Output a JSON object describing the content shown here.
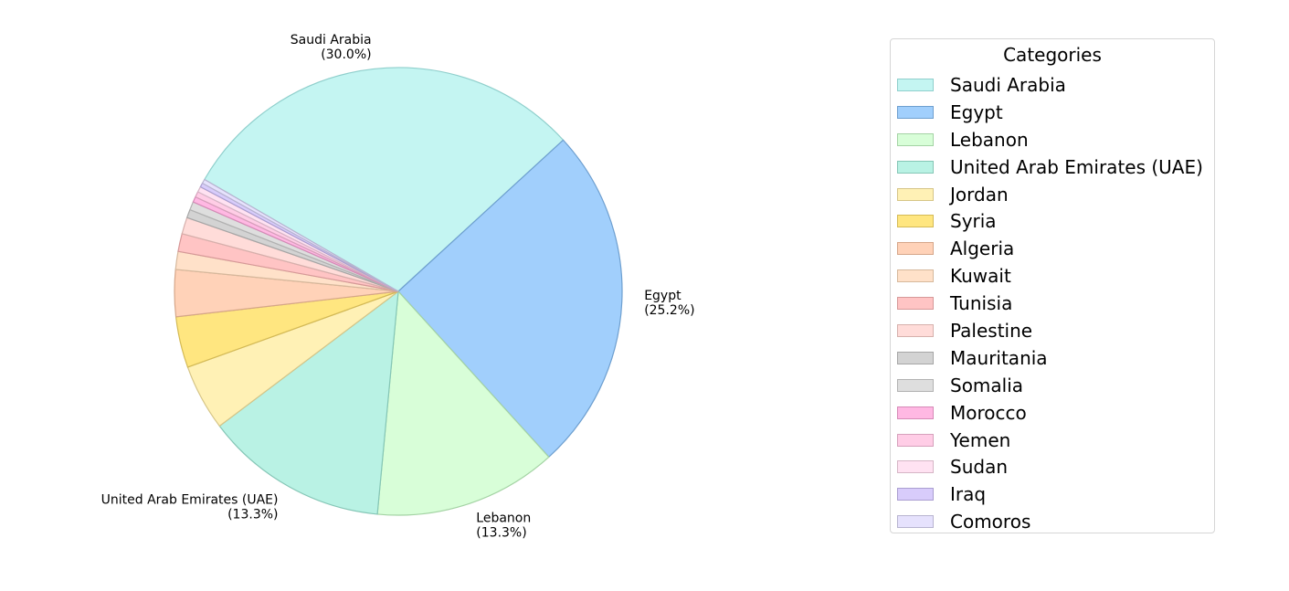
{
  "chart_data": {
    "type": "pie",
    "slices": [
      {
        "label": "Saudi Arabia",
        "value": 30.0,
        "color": "#c4f5f2",
        "edge": "#8fcfcc"
      },
      {
        "label": "Egypt",
        "value": 25.2,
        "color": "#a1cffc",
        "edge": "#6e9fcf"
      },
      {
        "label": "Lebanon",
        "value": 13.3,
        "color": "#d8fed8",
        "edge": "#a4d3a4"
      },
      {
        "label": "United Arab Emirates (UAE)",
        "value": 13.3,
        "color": "#b9f2e4",
        "edge": "#85c6b6"
      },
      {
        "label": "Jordan",
        "value": 4.8,
        "color": "#fff1b5",
        "edge": "#d6c587"
      },
      {
        "label": "Syria",
        "value": 3.7,
        "color": "#ffe680",
        "edge": "#d4ba55"
      },
      {
        "label": "Algeria",
        "value": 3.4,
        "color": "#ffd2b8",
        "edge": "#d6a689"
      },
      {
        "label": "Kuwait",
        "value": 1.3,
        "color": "#ffe1c9",
        "edge": "#d6b89c"
      },
      {
        "label": "Tunisia",
        "value": 1.3,
        "color": "#ffc4c4",
        "edge": "#d69898"
      },
      {
        "label": "Palestine",
        "value": 1.2,
        "color": "#ffdcd9",
        "edge": "#d6b0ac"
      },
      {
        "label": "Mauritania",
        "value": 0.6,
        "color": "#d3d3d3",
        "edge": "#a6a6a6"
      },
      {
        "label": "Somalia",
        "value": 0.6,
        "color": "#dedede",
        "edge": "#b2b2b2"
      },
      {
        "label": "Morocco",
        "value": 0.4,
        "color": "#ffb8e3",
        "edge": "#d68ab7"
      },
      {
        "label": "Yemen",
        "value": 0.4,
        "color": "#ffcde6",
        "edge": "#d6a0bb"
      },
      {
        "label": "Sudan",
        "value": 0.4,
        "color": "#ffe2f2",
        "edge": "#d6b6c6"
      },
      {
        "label": "Iraq",
        "value": 0.3,
        "color": "#d8ccfb",
        "edge": "#aa9ed0"
      },
      {
        "label": "Comoros",
        "value": 0.3,
        "color": "#e6e2fd",
        "edge": "#b8b4d0"
      }
    ],
    "start_angle_deg": 150,
    "direction": "clockwise",
    "label_min_percent": 10,
    "label_format": "percent-1dp",
    "legend": {
      "title": "Categories",
      "position": "right"
    }
  }
}
